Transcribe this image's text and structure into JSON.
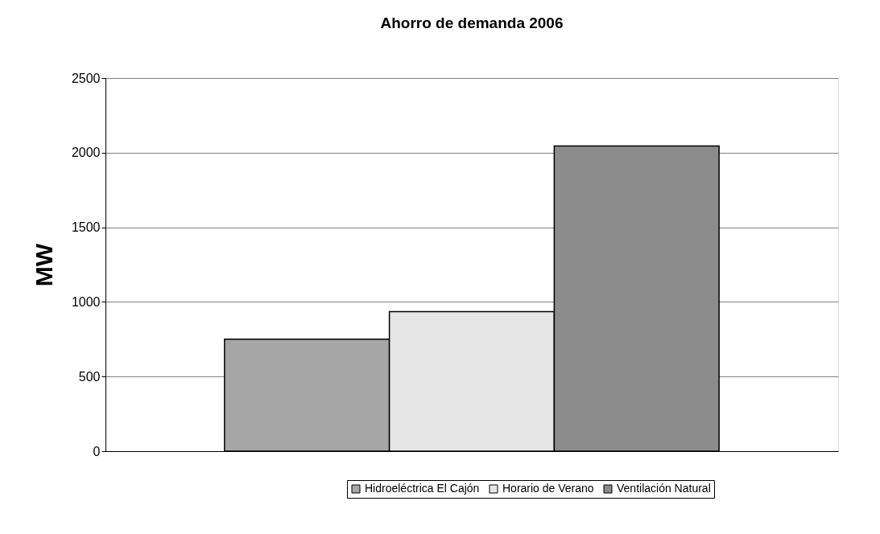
{
  "chart_data": {
    "type": "bar",
    "title": "Ahorro de demanda 2006",
    "ylabel": "MW",
    "categories": [
      null
    ],
    "series": [
      {
        "name": "Hidroeléctrica El Cajón",
        "color": "#a6a6a6",
        "values": [
          750
        ]
      },
      {
        "name": "Horario de Verano",
        "color": "#e6e6e6",
        "values": [
          935
        ]
      },
      {
        "name": "Ventilación Natural",
        "color": "#8c8c8c",
        "values": [
          2045
        ]
      }
    ],
    "ylim": [
      0,
      2500
    ],
    "yticks": [
      0,
      500,
      1000,
      1500,
      2000,
      2500
    ],
    "grid": "y",
    "legend": "bottom",
    "tick_labels": "y"
  }
}
